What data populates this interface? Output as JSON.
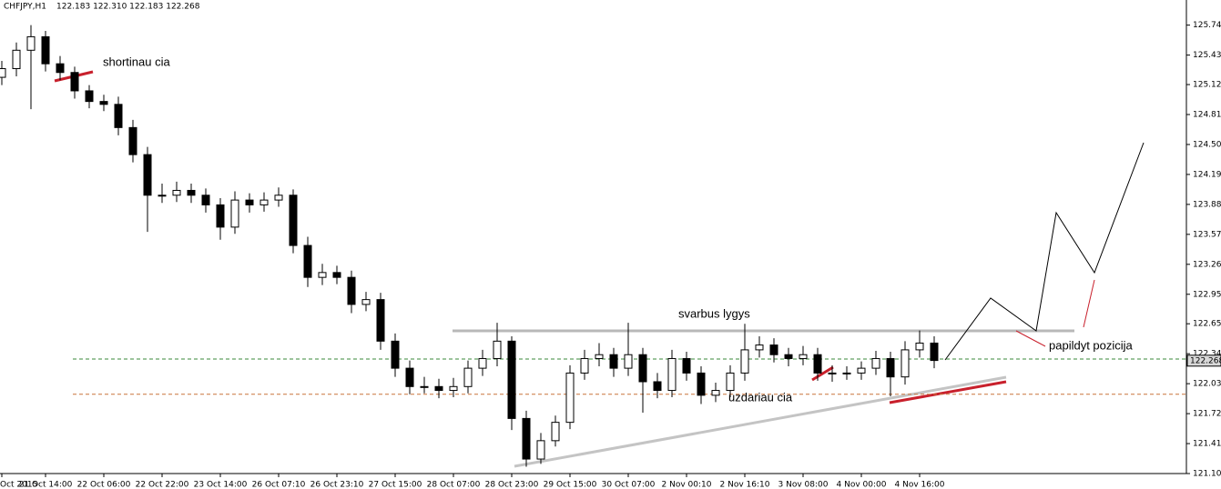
{
  "chart_data": {
    "type": "candlestick",
    "title": "CHFJPY,H1",
    "quote": "122.183 122.310 122.183 122.268",
    "ylim": [
      121.1,
      126.0
    ],
    "yticks": [
      {
        "value": 125.74,
        "label": "125.740"
      },
      {
        "value": 125.43,
        "label": "125.430"
      },
      125.125,
      124.815,
      124.505,
      124.195,
      123.885,
      123.575,
      123.265,
      122.955,
      {
        "value": 122.65,
        "label": "122.650"
      },
      {
        "value": 122.34,
        "label": "122.340"
      },
      {
        "value": 122.03,
        "label": "122.030"
      },
      {
        "value": 121.72,
        "label": "121.720"
      },
      {
        "value": 121.41,
        "label": "121.410"
      },
      {
        "value": 121.1,
        "label": "121.100"
      }
    ],
    "grid": false,
    "categories": [
      "Oct 2015",
      null,
      null,
      "21 Oct 14:00",
      null,
      null,
      null,
      "22 Oct 06:00",
      null,
      null,
      null,
      "22 Oct 22:00",
      null,
      null,
      null,
      "23 Oct 14:00",
      null,
      null,
      null,
      "26 Oct 07:10",
      null,
      null,
      null,
      "26 Oct 23:10",
      null,
      null,
      null,
      "27 Oct 15:00",
      null,
      null,
      null,
      "28 Oct 07:00",
      null,
      null,
      null,
      "28 Oct 23:00",
      null,
      null,
      null,
      "29 Oct 15:00",
      null,
      null,
      null,
      "30 Oct 07:00",
      null,
      null,
      null,
      "2 Nov 00:10",
      null,
      null,
      null,
      "2 Nov 16:10",
      null,
      null,
      null,
      "3 Nov 08:00",
      null,
      null,
      null,
      "4 Nov 00:00",
      null,
      null,
      null,
      "4 Nov 16:00",
      null
    ],
    "open": [
      125.2,
      125.29,
      125.48,
      125.62,
      125.34,
      125.25,
      125.06,
      124.95,
      124.92,
      124.68,
      124.4,
      123.98,
      123.98,
      124.03,
      123.98,
      123.88,
      123.65,
      123.93,
      123.88,
      123.93,
      123.98,
      123.46,
      123.13,
      123.18,
      123.13,
      122.85,
      122.9,
      122.47,
      122.19,
      122.0,
      122.0,
      121.96,
      122.0,
      122.19,
      122.29,
      122.47,
      121.67,
      121.25,
      121.44,
      121.63,
      122.14,
      122.29,
      122.33,
      122.19,
      122.33,
      122.05,
      121.96,
      122.29,
      122.14,
      121.91,
      121.96,
      122.14,
      122.38,
      122.43,
      122.33,
      122.29,
      122.33,
      122.14,
      122.14,
      122.14,
      122.19,
      122.29,
      122.1,
      122.38,
      122.45
    ],
    "high": [
      125.37,
      125.56,
      125.74,
      125.68,
      125.42,
      125.31,
      125.12,
      125.02,
      125.0,
      124.76,
      124.48,
      124.1,
      124.12,
      124.1,
      124.05,
      123.95,
      124.02,
      124.0,
      124.01,
      124.06,
      124.04,
      123.55,
      123.27,
      123.25,
      123.2,
      122.98,
      122.97,
      122.55,
      122.27,
      122.1,
      122.08,
      122.09,
      122.27,
      122.38,
      122.66,
      122.52,
      121.75,
      121.52,
      121.7,
      122.22,
      122.38,
      122.45,
      122.4,
      122.66,
      122.4,
      122.14,
      122.38,
      122.36,
      122.21,
      122.04,
      122.22,
      122.65,
      122.52,
      122.5,
      122.4,
      122.42,
      122.4,
      122.22,
      122.21,
      122.26,
      122.37,
      122.36,
      122.47,
      122.58,
      122.52
    ],
    "low": [
      125.12,
      125.21,
      124.87,
      125.26,
      125.17,
      124.98,
      124.88,
      124.85,
      124.6,
      124.32,
      123.6,
      123.9,
      123.91,
      123.9,
      123.8,
      123.52,
      123.58,
      123.8,
      123.81,
      123.86,
      123.38,
      123.03,
      123.05,
      123.06,
      122.76,
      122.78,
      122.38,
      122.1,
      121.92,
      121.93,
      121.88,
      121.89,
      121.93,
      122.11,
      122.21,
      121.55,
      121.17,
      121.2,
      121.38,
      121.56,
      122.07,
      122.21,
      122.1,
      122.11,
      121.73,
      121.88,
      121.89,
      122.06,
      121.82,
      121.84,
      121.89,
      122.06,
      122.3,
      122.25,
      122.21,
      122.22,
      122.06,
      122.05,
      122.07,
      122.07,
      122.12,
      121.9,
      122.02,
      122.3,
      122.19
    ],
    "close": [
      125.29,
      125.48,
      125.62,
      125.34,
      125.25,
      125.06,
      124.95,
      124.92,
      124.68,
      124.4,
      123.98,
      123.98,
      124.03,
      123.98,
      123.88,
      123.65,
      123.93,
      123.88,
      123.93,
      123.98,
      123.46,
      123.13,
      123.18,
      123.13,
      122.85,
      122.9,
      122.47,
      122.19,
      122.0,
      122.0,
      121.96,
      122.0,
      122.19,
      122.29,
      122.47,
      121.67,
      121.25,
      121.44,
      121.63,
      122.14,
      122.29,
      122.33,
      122.19,
      122.33,
      122.05,
      121.96,
      122.29,
      122.14,
      121.91,
      121.96,
      122.14,
      122.38,
      122.43,
      122.33,
      122.29,
      122.33,
      122.14,
      122.14,
      122.14,
      122.19,
      122.29,
      122.1,
      122.38,
      122.45,
      122.27
    ],
    "last_price": 122.268,
    "levels": [
      {
        "value": 122.285,
        "color": "#3a8a3a"
      },
      {
        "value": 121.92,
        "color": "#c8743c"
      }
    ],
    "annotations": [
      "shortinau cia",
      "svarbus lygys",
      "uzdariau cia",
      "papildyt pozicija"
    ]
  }
}
